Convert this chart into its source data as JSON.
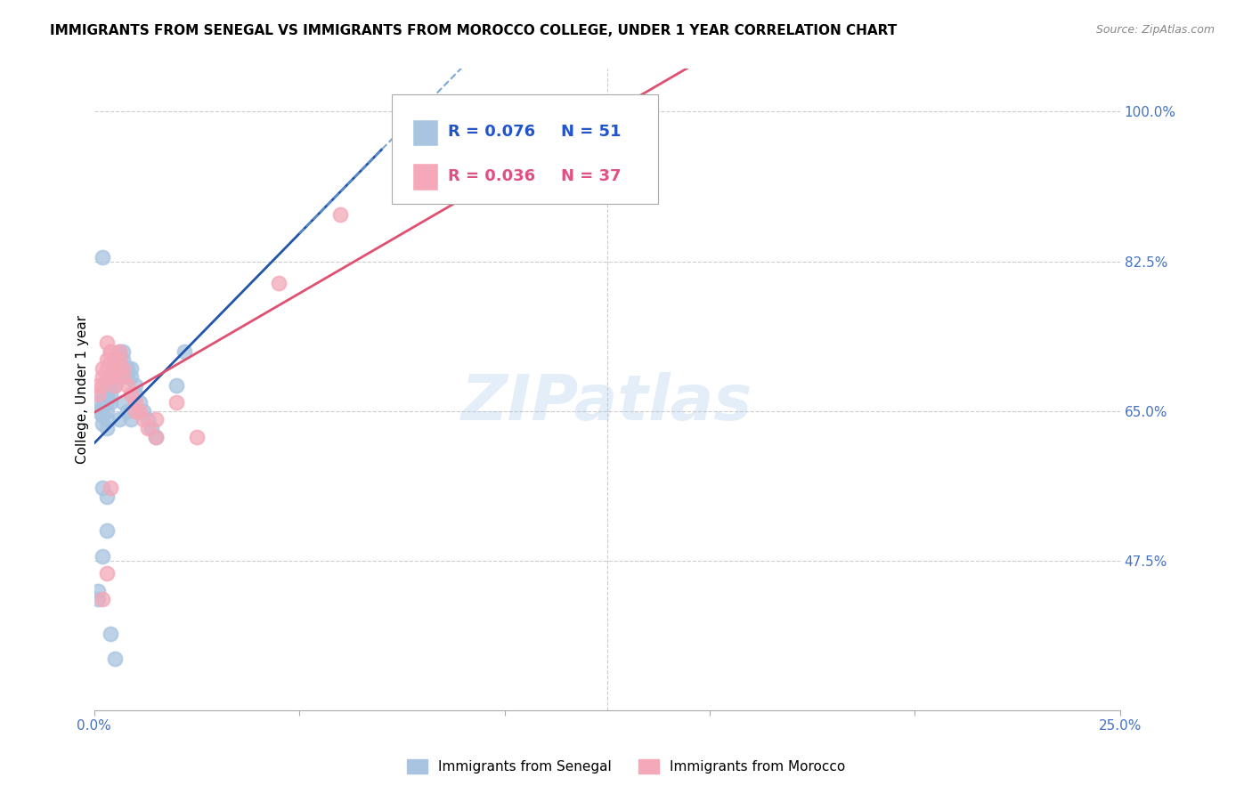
{
  "title": "IMMIGRANTS FROM SENEGAL VS IMMIGRANTS FROM MOROCCO COLLEGE, UNDER 1 YEAR CORRELATION CHART",
  "source": "Source: ZipAtlas.com",
  "ylabel": "College, Under 1 year",
  "xlim": [
    0.0,
    0.25
  ],
  "ylim": [
    0.3,
    1.05
  ],
  "xticks": [
    0.0,
    0.05,
    0.1,
    0.15,
    0.2,
    0.25
  ],
  "xticklabels": [
    "0.0%",
    "",
    "",
    "",
    "",
    "25.0%"
  ],
  "yticks_right": [
    1.0,
    0.825,
    0.65,
    0.475
  ],
  "ytick_right_labels": [
    "100.0%",
    "82.5%",
    "65.0%",
    "47.5%"
  ],
  "grid_yticks": [
    1.0,
    0.825,
    0.65,
    0.475
  ],
  "senegal_color": "#a8c4e0",
  "morocco_color": "#f4a8b8",
  "senegal_line_color": "#2255aa",
  "morocco_line_color": "#e05070",
  "dashed_line_color": "#6699cc",
  "legend_label1": "Immigrants from Senegal",
  "legend_label2": "Immigrants from Morocco",
  "watermark": "ZIPatlas",
  "tick_label_color": "#4472c4",
  "senegal_x": [
    0.001,
    0.001,
    0.002,
    0.002,
    0.002,
    0.002,
    0.003,
    0.003,
    0.003,
    0.003,
    0.003,
    0.003,
    0.004,
    0.004,
    0.004,
    0.004,
    0.005,
    0.005,
    0.005,
    0.005,
    0.006,
    0.006,
    0.006,
    0.007,
    0.007,
    0.008,
    0.008,
    0.009,
    0.009,
    0.01,
    0.01,
    0.011,
    0.012,
    0.013,
    0.014,
    0.015,
    0.02,
    0.001,
    0.001,
    0.002,
    0.002,
    0.003,
    0.003,
    0.004,
    0.005,
    0.006,
    0.007,
    0.008,
    0.009,
    0.022,
    0.002
  ],
  "senegal_y": [
    0.66,
    0.65,
    0.67,
    0.655,
    0.645,
    0.635,
    0.68,
    0.67,
    0.66,
    0.65,
    0.64,
    0.63,
    0.69,
    0.68,
    0.67,
    0.66,
    0.71,
    0.7,
    0.69,
    0.68,
    0.72,
    0.71,
    0.7,
    0.72,
    0.71,
    0.7,
    0.69,
    0.7,
    0.69,
    0.68,
    0.67,
    0.66,
    0.65,
    0.64,
    0.63,
    0.62,
    0.68,
    0.43,
    0.44,
    0.48,
    0.56,
    0.55,
    0.51,
    0.39,
    0.36,
    0.64,
    0.66,
    0.65,
    0.64,
    0.72,
    0.83
  ],
  "morocco_x": [
    0.001,
    0.001,
    0.002,
    0.002,
    0.002,
    0.003,
    0.003,
    0.003,
    0.004,
    0.004,
    0.005,
    0.005,
    0.005,
    0.006,
    0.006,
    0.007,
    0.007,
    0.008,
    0.009,
    0.01,
    0.011,
    0.012,
    0.013,
    0.015,
    0.02,
    0.003,
    0.004,
    0.005,
    0.006,
    0.01,
    0.015,
    0.06,
    0.025,
    0.045,
    0.002,
    0.003,
    0.004
  ],
  "morocco_y": [
    0.68,
    0.67,
    0.7,
    0.69,
    0.68,
    0.71,
    0.7,
    0.69,
    0.72,
    0.71,
    0.7,
    0.69,
    0.68,
    0.72,
    0.71,
    0.7,
    0.69,
    0.68,
    0.67,
    0.66,
    0.65,
    0.64,
    0.63,
    0.62,
    0.66,
    0.73,
    0.72,
    0.71,
    0.7,
    0.65,
    0.64,
    0.88,
    0.62,
    0.8,
    0.43,
    0.46,
    0.56
  ]
}
